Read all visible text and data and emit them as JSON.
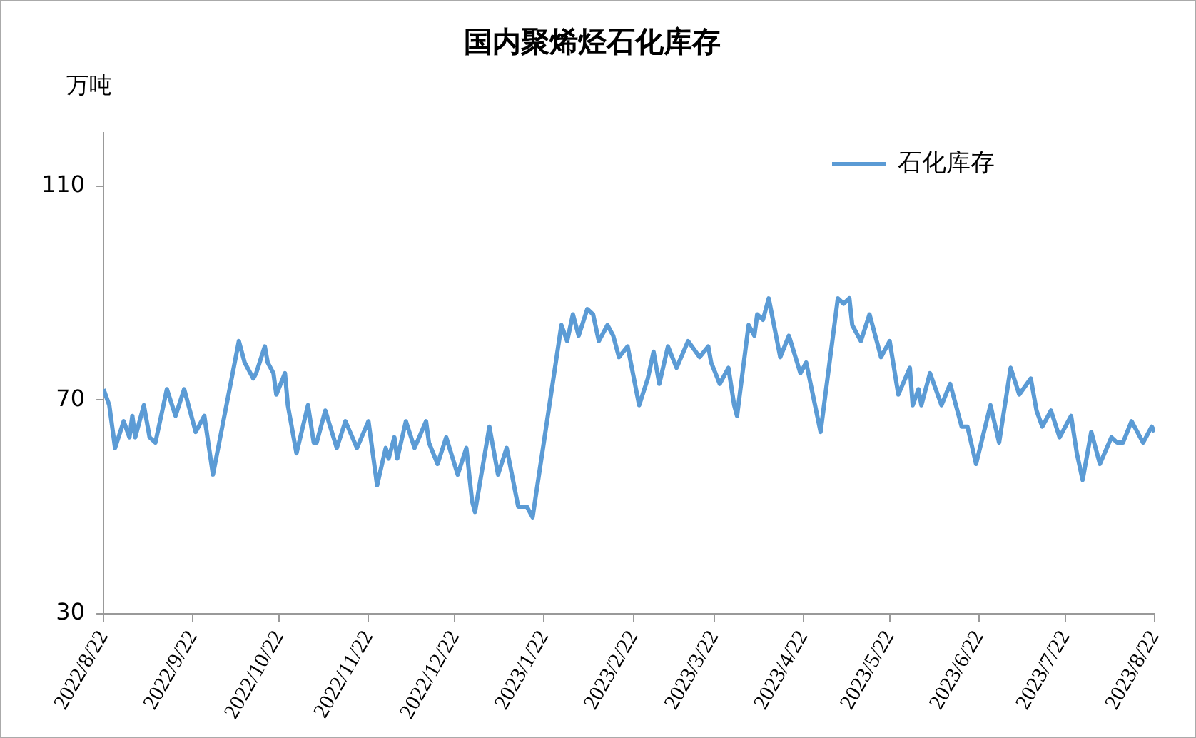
{
  "chart_data": {
    "type": "line",
    "title": "国内聚烯烃石化库存",
    "ylabel": "万吨",
    "x": [
      "2022-08-22",
      "2022-08-24",
      "2022-08-26",
      "2022-08-29",
      "2022-08-31",
      "2022-09-01",
      "2022-09-02",
      "2022-09-05",
      "2022-09-07",
      "2022-09-09",
      "2022-09-13",
      "2022-09-16",
      "2022-09-19",
      "2022-09-21",
      "2022-09-23",
      "2022-09-26",
      "2022-09-29",
      "2022-10-08",
      "2022-10-10",
      "2022-10-13",
      "2022-10-14",
      "2022-10-17",
      "2022-10-18",
      "2022-10-20",
      "2022-10-21",
      "2022-10-24",
      "2022-10-25",
      "2022-10-28",
      "2022-11-01",
      "2022-11-03",
      "2022-11-04",
      "2022-11-07",
      "2022-11-11",
      "2022-11-14",
      "2022-11-18",
      "2022-11-22",
      "2022-11-25",
      "2022-11-28",
      "2022-11-29",
      "2022-12-01",
      "2022-12-02",
      "2022-12-05",
      "2022-12-08",
      "2022-12-12",
      "2022-12-13",
      "2022-12-16",
      "2022-12-19",
      "2022-12-23",
      "2022-12-26",
      "2022-12-28",
      "2022-12-29",
      "2023-01-03",
      "2023-01-06",
      "2023-01-09",
      "2023-01-13",
      "2023-01-16",
      "2023-01-18",
      "2023-01-28",
      "2023-01-30",
      "2023-02-01",
      "2023-02-03",
      "2023-02-06",
      "2023-02-08",
      "2023-02-10",
      "2023-02-13",
      "2023-02-15",
      "2023-02-17",
      "2023-02-20",
      "2023-02-24",
      "2023-02-27",
      "2023-03-01",
      "2023-03-03",
      "2023-03-06",
      "2023-03-09",
      "2023-03-13",
      "2023-03-17",
      "2023-03-20",
      "2023-03-21",
      "2023-03-24",
      "2023-03-27",
      "2023-03-29",
      "2023-03-30",
      "2023-04-03",
      "2023-04-05",
      "2023-04-06",
      "2023-04-08",
      "2023-04-10",
      "2023-04-14",
      "2023-04-17",
      "2023-04-21",
      "2023-04-23",
      "2023-04-28",
      "2023-05-04",
      "2023-05-06",
      "2023-05-08",
      "2023-05-09",
      "2023-05-12",
      "2023-05-15",
      "2023-05-19",
      "2023-05-22",
      "2023-05-25",
      "2023-05-29",
      "2023-05-30",
      "2023-06-01",
      "2023-06-02",
      "2023-06-05",
      "2023-06-07",
      "2023-06-09",
      "2023-06-12",
      "2023-06-16",
      "2023-06-18",
      "2023-06-21",
      "2023-06-26",
      "2023-06-29",
      "2023-07-03",
      "2023-07-06",
      "2023-07-10",
      "2023-07-12",
      "2023-07-14",
      "2023-07-17",
      "2023-07-20",
      "2023-07-24",
      "2023-07-26",
      "2023-07-28",
      "2023-07-31",
      "2023-08-03",
      "2023-08-07",
      "2023-08-09",
      "2023-08-11",
      "2023-08-14",
      "2023-08-18",
      "2023-08-21",
      "2023-08-22"
    ],
    "series": [
      {
        "name": "石化库存",
        "color": "#5b9bd5",
        "values": [
          72,
          69,
          61,
          66,
          63,
          67,
          63,
          69,
          63,
          62,
          72,
          67,
          72,
          68,
          64,
          67,
          56,
          81,
          77,
          74,
          75,
          80,
          77,
          75,
          71,
          75,
          69,
          60,
          69,
          62,
          62,
          68,
          61,
          66,
          61,
          66,
          54,
          61,
          59,
          63,
          59,
          66,
          61,
          66,
          62,
          58,
          63,
          56,
          61,
          51,
          49,
          65,
          56,
          61,
          50,
          50,
          48,
          84,
          81,
          86,
          82,
          87,
          86,
          81,
          84,
          82,
          78,
          80,
          69,
          74,
          79,
          73,
          80,
          76,
          81,
          78,
          80,
          77,
          73,
          76,
          69,
          67,
          84,
          82,
          86,
          85,
          89,
          78,
          82,
          75,
          77,
          64,
          89,
          88,
          89,
          84,
          81,
          86,
          78,
          81,
          71,
          76,
          69,
          72,
          69,
          75,
          72,
          69,
          73,
          65,
          65,
          58,
          69,
          62,
          76,
          71,
          74,
          68,
          65,
          68,
          63,
          67,
          60,
          55,
          64,
          58,
          63,
          62,
          62,
          66,
          62,
          65,
          64
        ]
      }
    ],
    "xlim": [
      "2022-08-22",
      "2023-08-22"
    ],
    "xticks": [
      {
        "value": "2022-08-22",
        "label": "2022/8/22"
      },
      {
        "value": "2022-09-22",
        "label": "2022/9/22"
      },
      {
        "value": "2022-10-22",
        "label": "2022/10/22"
      },
      {
        "value": "2022-11-22",
        "label": "2022/11/22"
      },
      {
        "value": "2022-12-22",
        "label": "2022/12/22"
      },
      {
        "value": "2023-01-22",
        "label": "2023/1/22"
      },
      {
        "value": "2023-02-22",
        "label": "2023/2/22"
      },
      {
        "value": "2023-03-22",
        "label": "2023/3/22"
      },
      {
        "value": "2023-04-22",
        "label": "2023/4/22"
      },
      {
        "value": "2023-05-22",
        "label": "2023/5/22"
      },
      {
        "value": "2023-06-22",
        "label": "2023/6/22"
      },
      {
        "value": "2023-07-22",
        "label": "2023/7/22"
      },
      {
        "value": "2023-08-22",
        "label": "2023/8/22"
      }
    ],
    "ylim": [
      30,
      120
    ],
    "yticks": [
      30,
      70,
      110
    ],
    "grid": false,
    "legend": "top right",
    "marker": "none",
    "line_style": "solid"
  }
}
